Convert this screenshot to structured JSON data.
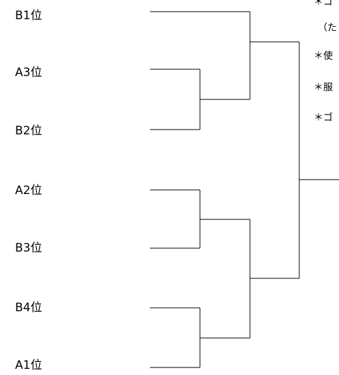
{
  "bracket": {
    "seeds": [
      "B1位",
      "A3位",
      "B2位",
      "A2位",
      "B3位",
      "B4位",
      "A1位"
    ]
  },
  "notes": [
    "＊ゴ",
    "（た",
    "＊使",
    "＊服",
    "＊ゴ"
  ]
}
